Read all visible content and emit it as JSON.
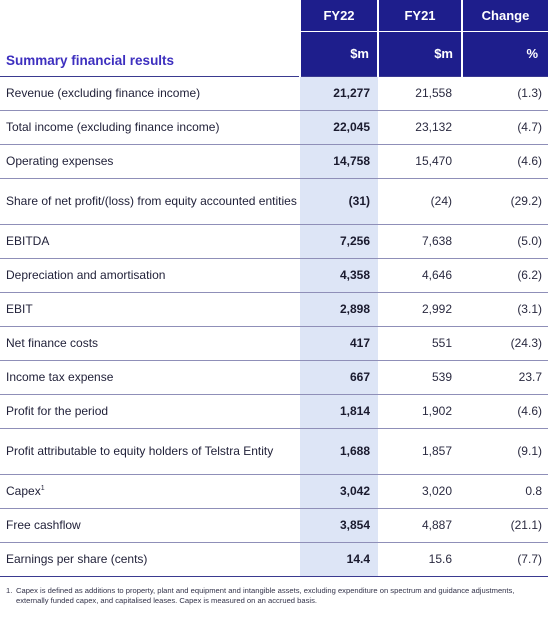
{
  "header": {
    "title": "Summary financial results",
    "columns": [
      {
        "label": "FY22",
        "unit": "$m"
      },
      {
        "label": "FY21",
        "unit": "$m"
      },
      {
        "label": "Change",
        "unit": "%"
      }
    ]
  },
  "rows": [
    {
      "label": "Revenue (excluding finance income)",
      "fy22": "21,277",
      "fy21": "21,558",
      "change": "(1.3)"
    },
    {
      "label": "Total income (excluding finance income)",
      "fy22": "22,045",
      "fy21": "23,132",
      "change": "(4.7)"
    },
    {
      "label": "Operating expenses",
      "fy22": "14,758",
      "fy21": "15,470",
      "change": "(4.6)"
    },
    {
      "label": "Share of net profit/(loss) from equity accounted entities",
      "fy22": "(31)",
      "fy21": "(24)",
      "change": "(29.2)"
    },
    {
      "label": "EBITDA",
      "fy22": "7,256",
      "fy21": "7,638",
      "change": "(5.0)"
    },
    {
      "label": "Depreciation and amortisation",
      "fy22": "4,358",
      "fy21": "4,646",
      "change": "(6.2)"
    },
    {
      "label": "EBIT",
      "fy22": "2,898",
      "fy21": "2,992",
      "change": "(3.1)"
    },
    {
      "label": "Net finance costs",
      "fy22": "417",
      "fy21": "551",
      "change": "(24.3)"
    },
    {
      "label": "Income tax expense",
      "fy22": "667",
      "fy21": "539",
      "change": "23.7"
    },
    {
      "label": "Profit for the period",
      "fy22": "1,814",
      "fy21": "1,902",
      "change": "(4.6)"
    },
    {
      "label": "Profit attributable to equity holders of Telstra Entity",
      "fy22": "1,688",
      "fy21": "1,857",
      "change": "(9.1)"
    },
    {
      "label": "Capex",
      "footnote_mark": "1",
      "fy22": "3,042",
      "fy21": "3,020",
      "change": "0.8"
    },
    {
      "label": "Free cashflow",
      "fy22": "3,854",
      "fy21": "4,887",
      "change": "(21.1)"
    },
    {
      "label": "Earnings per share (cents)",
      "fy22": "14.4",
      "fy21": "15.6",
      "change": "(7.7)"
    }
  ],
  "footnote": {
    "number": "1.",
    "text": "Capex is defined as additions to property, plant and equipment and intangible assets, excluding expenditure on spectrum and guidance adjustments, externally funded capex, and capitalised leases. Capex is measured on an accrued basis."
  }
}
